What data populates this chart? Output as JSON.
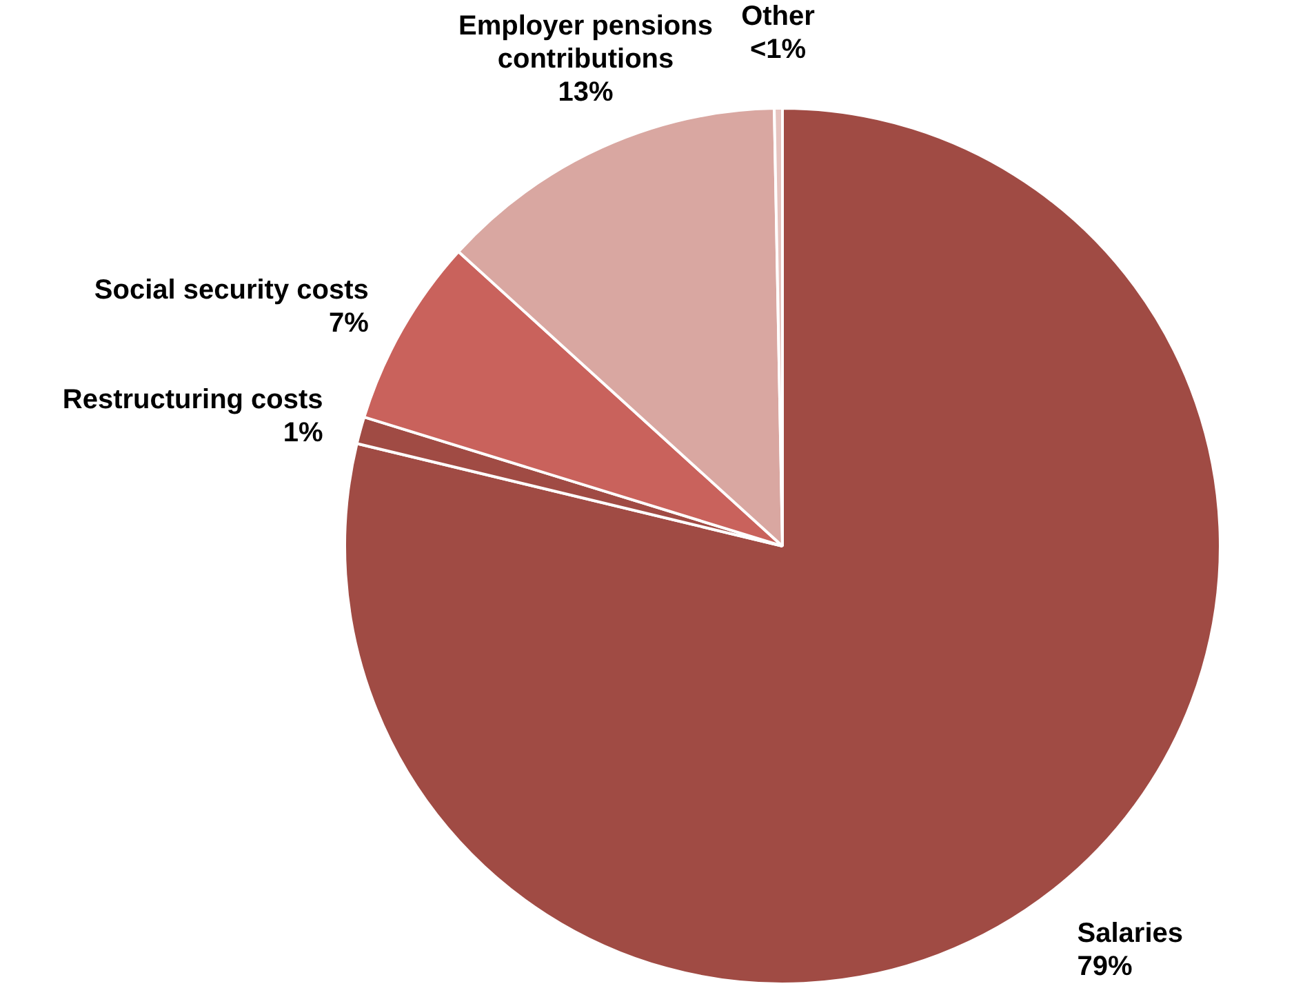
{
  "chart_data": {
    "type": "pie",
    "categories": [
      "Salaries",
      "Restructuring costs",
      "Social security costs",
      "Employer pensions contributions",
      "Other"
    ],
    "values": [
      79,
      1,
      7,
      13,
      0.3
    ],
    "value_labels": [
      "79%",
      "1%",
      "7%",
      "13%",
      "<1%"
    ],
    "colors": [
      "#a04b44",
      "#a04b44",
      "#c9625c",
      "#d9a7a1",
      "#e6c3bf"
    ],
    "legend": false
  }
}
